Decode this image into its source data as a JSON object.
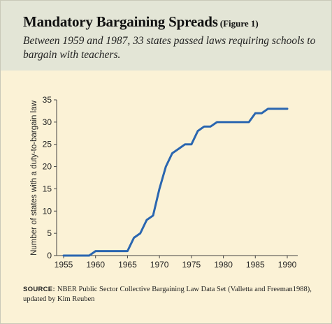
{
  "header": {
    "title": "Mandatory Bargaining Spreads",
    "figure_label": "(Figure 1)",
    "subtitle": "Between 1959 and 1987, 33 states passed laws requiring schools to bargain with teachers."
  },
  "source": {
    "label": "SOURCE:",
    "text": "NBER Public Sector Collective Bargaining Law Data Set (Valletta and Freeman1988), updated by Kim Reuben"
  },
  "colors": {
    "line": "#2a66b0",
    "header_bg": "#e3e5d6",
    "panel_bg": "#fbf2d6"
  },
  "chart_data": {
    "type": "line",
    "title": "",
    "xlabel": "",
    "ylabel": "Number of states with a duty-to-bargain law",
    "xlim": [
      1955,
      1990
    ],
    "ylim": [
      0,
      35
    ],
    "xticks": [
      1955,
      1960,
      1965,
      1970,
      1975,
      1980,
      1985,
      1990
    ],
    "yticks": [
      0,
      5,
      10,
      15,
      20,
      25,
      30,
      35
    ],
    "grid": false,
    "legend": "none",
    "series": [
      {
        "x": [
          1955,
          1956,
          1957,
          1958,
          1959,
          1960,
          1961,
          1962,
          1963,
          1964,
          1965,
          1966,
          1967,
          1968,
          1969,
          1970,
          1971,
          1972,
          1973,
          1974,
          1975,
          1976,
          1977,
          1978,
          1979,
          1980,
          1981,
          1982,
          1983,
          1984,
          1985,
          1986,
          1987,
          1988,
          1989,
          1990
        ],
        "y": [
          0,
          0,
          0,
          0,
          0,
          1,
          1,
          1,
          1,
          1,
          1,
          4,
          5,
          8,
          9,
          15,
          20,
          23,
          24,
          25,
          25,
          28,
          29,
          29,
          30,
          30,
          30,
          30,
          30,
          30,
          32,
          32,
          33,
          33,
          33,
          33
        ]
      }
    ]
  }
}
